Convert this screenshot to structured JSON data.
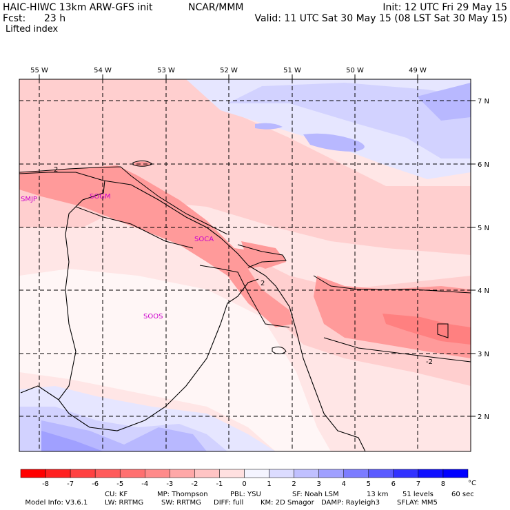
{
  "header": {
    "model_title": "HAIC-HIWC 13km ARW-GFS init",
    "org": "NCAR/MMM",
    "forecast_label": "Fcst:",
    "forecast_hours": "23 h",
    "field_name": "Lifted index",
    "init_line": "Init: 12 UTC Fri 29 May 15",
    "valid_line": "Valid: 11 UTC Sat 30 May 15 (08 LST Sat 30 May 15)"
  },
  "map": {
    "longitude_labels": [
      "55 W",
      "54 W",
      "53 W",
      "52 W",
      "51 W",
      "50 W",
      "49 W"
    ],
    "latitude_labels": [
      "7 N",
      "6 N",
      "5 N",
      "4 N",
      "3 N",
      "2 N"
    ],
    "station_labels": [
      "SMJP",
      "SOGM",
      "SOCA",
      "SOOS"
    ],
    "contour_labels": [
      "2",
      "2",
      "-2"
    ],
    "colors": {
      "station": "#cc00cc",
      "grid": "#000000",
      "border": "#000000"
    }
  },
  "colorbar": {
    "tick_labels": [
      "-8",
      "-7",
      "-6",
      "-5",
      "-4",
      "-3",
      "-2",
      "-1",
      "0",
      "1",
      "2",
      "3",
      "4",
      "5",
      "6",
      "7",
      "8"
    ],
    "unit": "°C",
    "colors": [
      "#ff0000",
      "#ff2020",
      "#ff4040",
      "#ff5a5a",
      "#ff7070",
      "#ff8a8a",
      "#ffa8a8",
      "#ffc4c4",
      "#ffe0e0",
      "#f4f4ff",
      "#dcdcff",
      "#c0c0ff",
      "#a0a0ff",
      "#7c7cff",
      "#5a5aff",
      "#3232ff",
      "#1010ff",
      "#0000ff"
    ]
  },
  "model_info": {
    "line1": [
      "Model Info: V3.6.1",
      "CU: KF",
      "MP: Thompson",
      "PBL: YSU",
      "SF: Noah LSM",
      "13 km",
      "51 levels",
      "60 sec"
    ],
    "line2": [
      "LW: RRTMG",
      "SW: RRTMG",
      "DIFF: full",
      "KM: 2D Smagor",
      "DAMP: Rayleigh3",
      "SFLAY: MM5"
    ]
  }
}
